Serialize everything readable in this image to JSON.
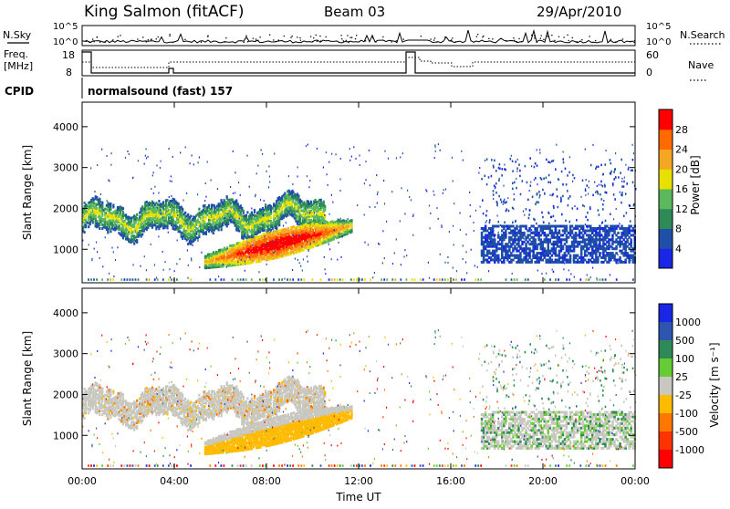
{
  "header": {
    "station": "King Salmon (fitACF)",
    "beam": "Beam 03",
    "date": "29/Apr/2010"
  },
  "strip_labels": {
    "nsky": "N.Sky",
    "freq_line1": "Freq.",
    "freq_line2": "[MHz]",
    "cpid": "CPID",
    "nsearch": "N.Search",
    "nave": "Nave",
    "cpid_text": "normalsound (fast) 157",
    "nsky_ticks": [
      "10^5",
      "10^0"
    ],
    "nsearch_ticks": [
      "10^5",
      "10^0"
    ],
    "freq_ticks": [
      "18",
      "8"
    ],
    "nave_ticks": [
      "60",
      "0"
    ]
  },
  "chart_data": [
    {
      "type": "heatmap",
      "name": "power",
      "ylabel": "Slant Range [km]",
      "ylim": [
        180,
        4600
      ],
      "yticks": [
        1000,
        2000,
        3000,
        4000
      ],
      "xlim": [
        0,
        24
      ],
      "colorbar": {
        "label": "Power [dB]",
        "ticks": [
          4,
          8,
          12,
          16,
          20,
          24,
          28
        ],
        "range": [
          0,
          32
        ],
        "colors": [
          "#1a26e6",
          "#1f4fa8",
          "#2e8b57",
          "#5cb85c",
          "#e8e000",
          "#f5a623",
          "#ff6a00",
          "#ff0000"
        ]
      },
      "features": [
        {
          "desc": "upper band",
          "t_start": 0.0,
          "t_end": 10.5,
          "range_km": [
            1400,
            2100
          ],
          "power_db": [
            4,
            16
          ]
        },
        {
          "desc": "lower band",
          "t_start": 5.3,
          "t_end": 11.7,
          "range_km": [
            600,
            1650
          ],
          "power_db": [
            8,
            30
          ]
        },
        {
          "desc": "late band",
          "t_start": 17.3,
          "t_end": 24.0,
          "range_km": [
            700,
            1500
          ],
          "power_db": [
            4,
            8
          ]
        }
      ]
    },
    {
      "type": "heatmap",
      "name": "velocity",
      "ylabel": "Slant Range [km]",
      "xlabel": "Time UT",
      "ylim": [
        180,
        4600
      ],
      "yticks": [
        1000,
        2000,
        3000,
        4000
      ],
      "xlim": [
        0,
        24
      ],
      "xticks": [
        "00:00",
        "04:00",
        "08:00",
        "12:00",
        "16:00",
        "20:00",
        "00:00"
      ],
      "colorbar": {
        "label": "Velocity [m s⁻¹]",
        "ticks": [
          "1000",
          "500",
          "100",
          "25",
          "-25",
          "-100",
          "-500",
          "-1000"
        ],
        "colors": [
          "#1a26e6",
          "#2e55b0",
          "#2e8b57",
          "#66cc33",
          "#c8c8c0",
          "#ffbb00",
          "#ff7700",
          "#ff3300",
          "#ff0000"
        ]
      },
      "features": [
        {
          "desc": "upper band",
          "t_start": 0.0,
          "t_end": 10.5,
          "range_km": [
            1400,
            2100
          ],
          "velocity": "-25 to 25"
        },
        {
          "desc": "lower band",
          "t_start": 5.3,
          "t_end": 11.7,
          "range_km": [
            600,
            1650
          ],
          "velocity": "-100 to -25"
        },
        {
          "desc": "late band",
          "t_start": 17.3,
          "t_end": 24.0,
          "range_km": [
            700,
            1500
          ],
          "velocity": "-25 to 100"
        }
      ]
    }
  ]
}
